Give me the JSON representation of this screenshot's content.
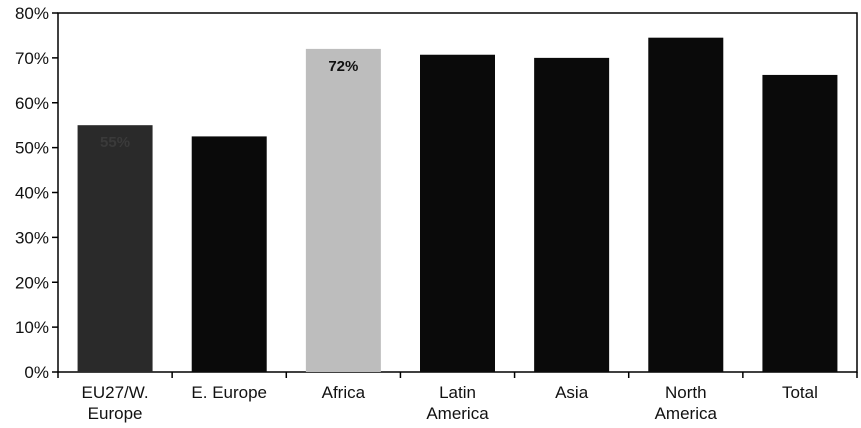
{
  "chart_data": {
    "type": "bar",
    "title": "",
    "xlabel": "",
    "ylabel": "",
    "categories": [
      [
        "EU27/W.",
        "Europe"
      ],
      [
        "E. Europe"
      ],
      [
        "Africa"
      ],
      [
        "Latin",
        "America"
      ],
      [
        "Asia"
      ],
      [
        "North",
        "America"
      ],
      [
        "Total"
      ]
    ],
    "values": [
      55,
      52.5,
      72,
      70.7,
      70,
      74.5,
      66.2
    ],
    "data_labels": [
      "55%",
      "",
      "72%",
      "",
      "",
      "",
      ""
    ],
    "ylim": [
      0,
      80
    ],
    "yticks": [
      "0%",
      "10%",
      "20%",
      "30%",
      "40%",
      "50%",
      "60%",
      "70%",
      "80%"
    ],
    "grid": false,
    "legend": "none",
    "bar_colors": [
      "#2a2a2a",
      "#0a0a0a",
      "#bdbdbd",
      "#0a0a0a",
      "#0a0a0a",
      "#0a0a0a",
      "#0a0a0a"
    ],
    "data_label_colors": [
      "#3a3a3a",
      "#111111",
      "#111111",
      "#111111",
      "#111111",
      "#111111",
      "#111111"
    ]
  }
}
